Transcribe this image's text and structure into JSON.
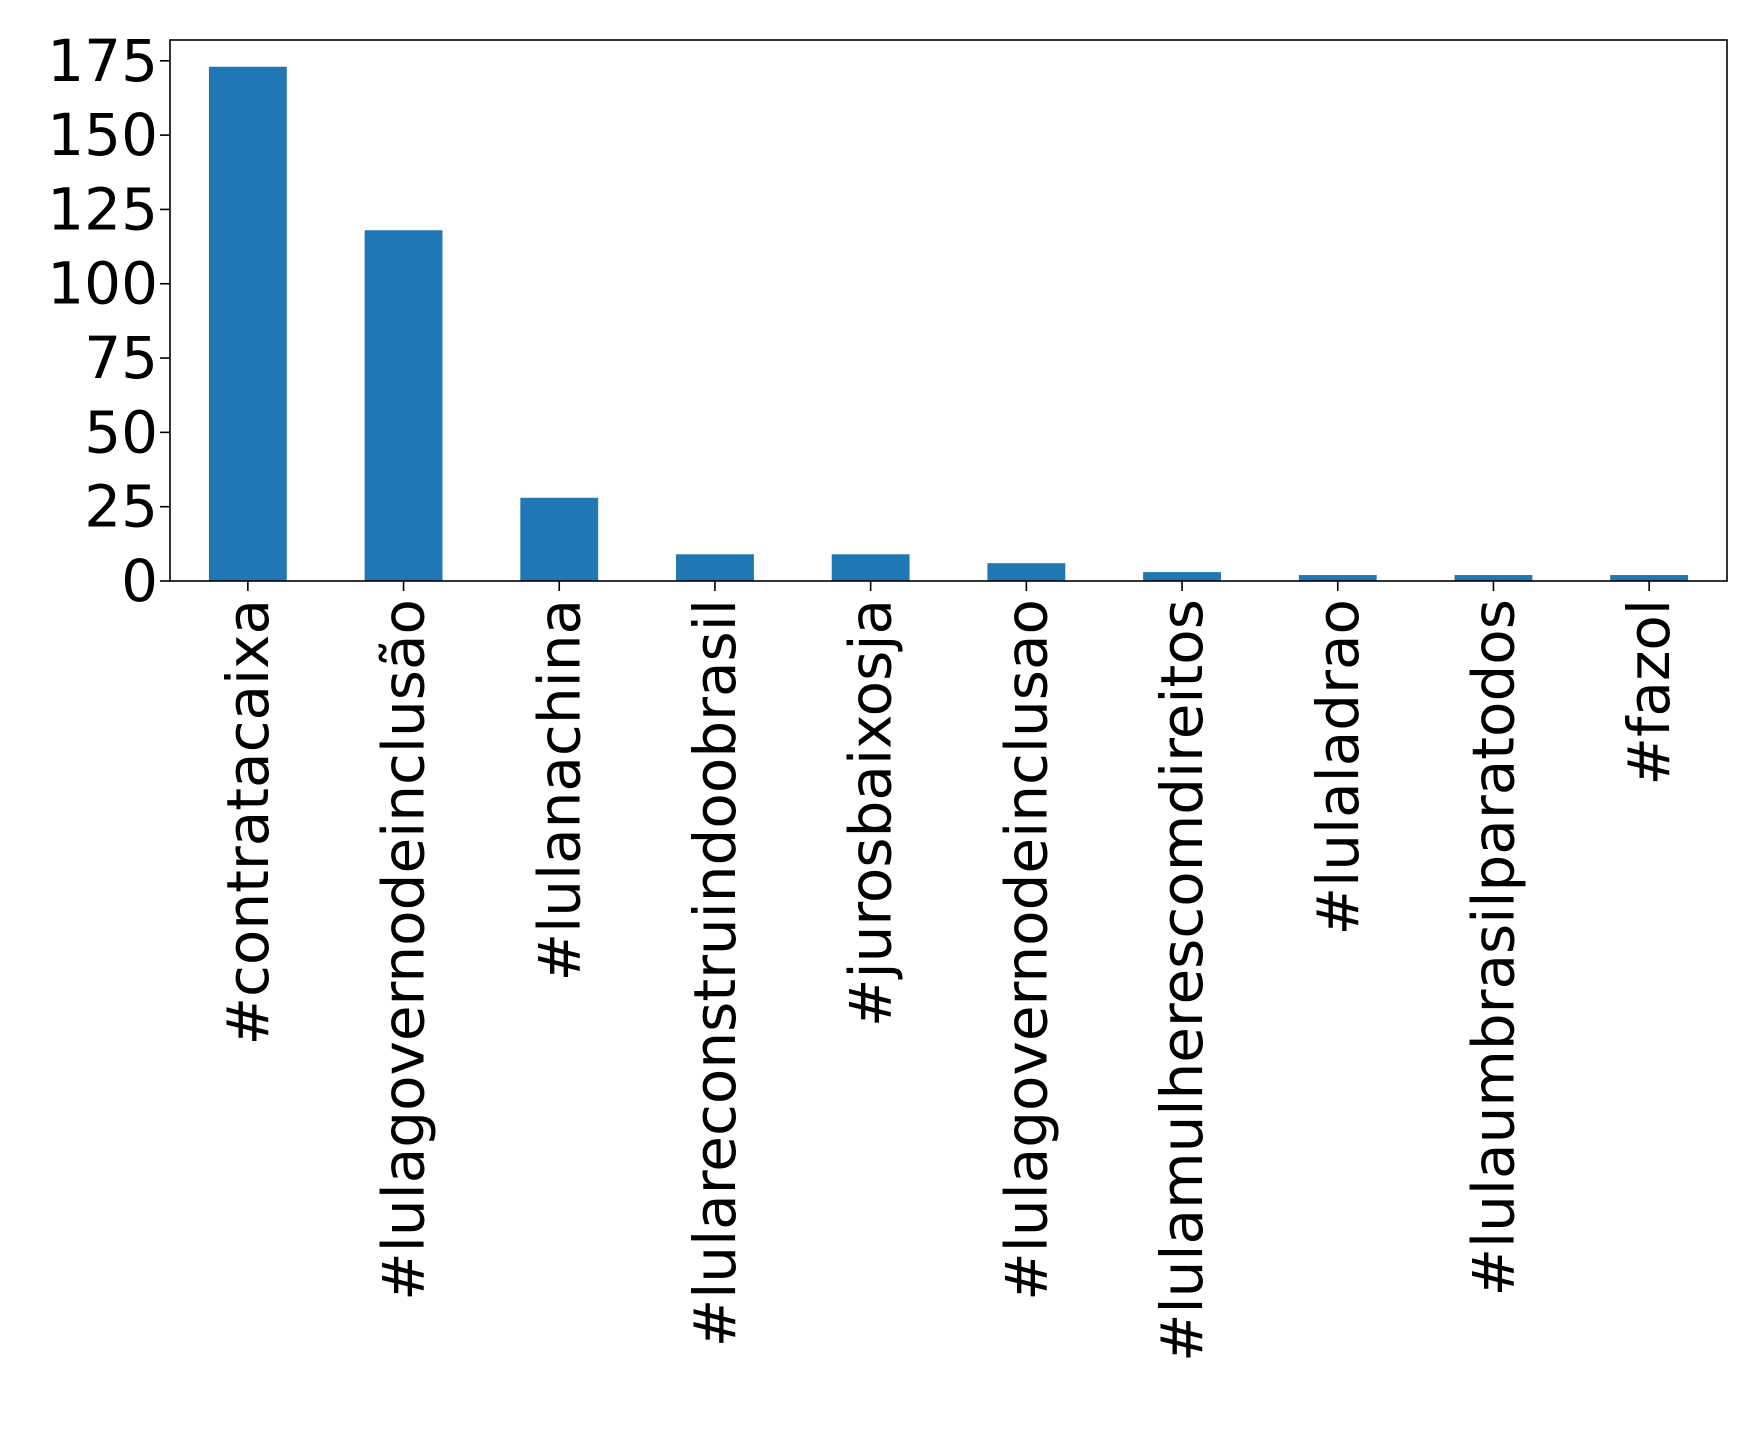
{
  "chart_data": {
    "type": "bar",
    "title": "",
    "xlabel": "",
    "ylabel": "",
    "categories": [
      "#contratacaixa",
      "#lulagovernodeinclusão",
      "#lulanachina",
      "#lulareconstruindoobrasil",
      "#jurosbaixosja",
      "#lulagovernodeinclusao",
      "#lulamulherescomdireitos",
      "#lulaladrao",
      "#lulaumbrasilparatodos",
      "#fazol"
    ],
    "values": [
      173,
      118,
      28,
      9,
      9,
      6,
      3,
      2,
      2,
      2
    ],
    "ylim": [
      0,
      182
    ],
    "yticks": [
      "0",
      "25",
      "50",
      "75",
      "100",
      "125",
      "150",
      "175"
    ],
    "bar_color": "#1f77b4",
    "grid": false,
    "legend": "none"
  }
}
